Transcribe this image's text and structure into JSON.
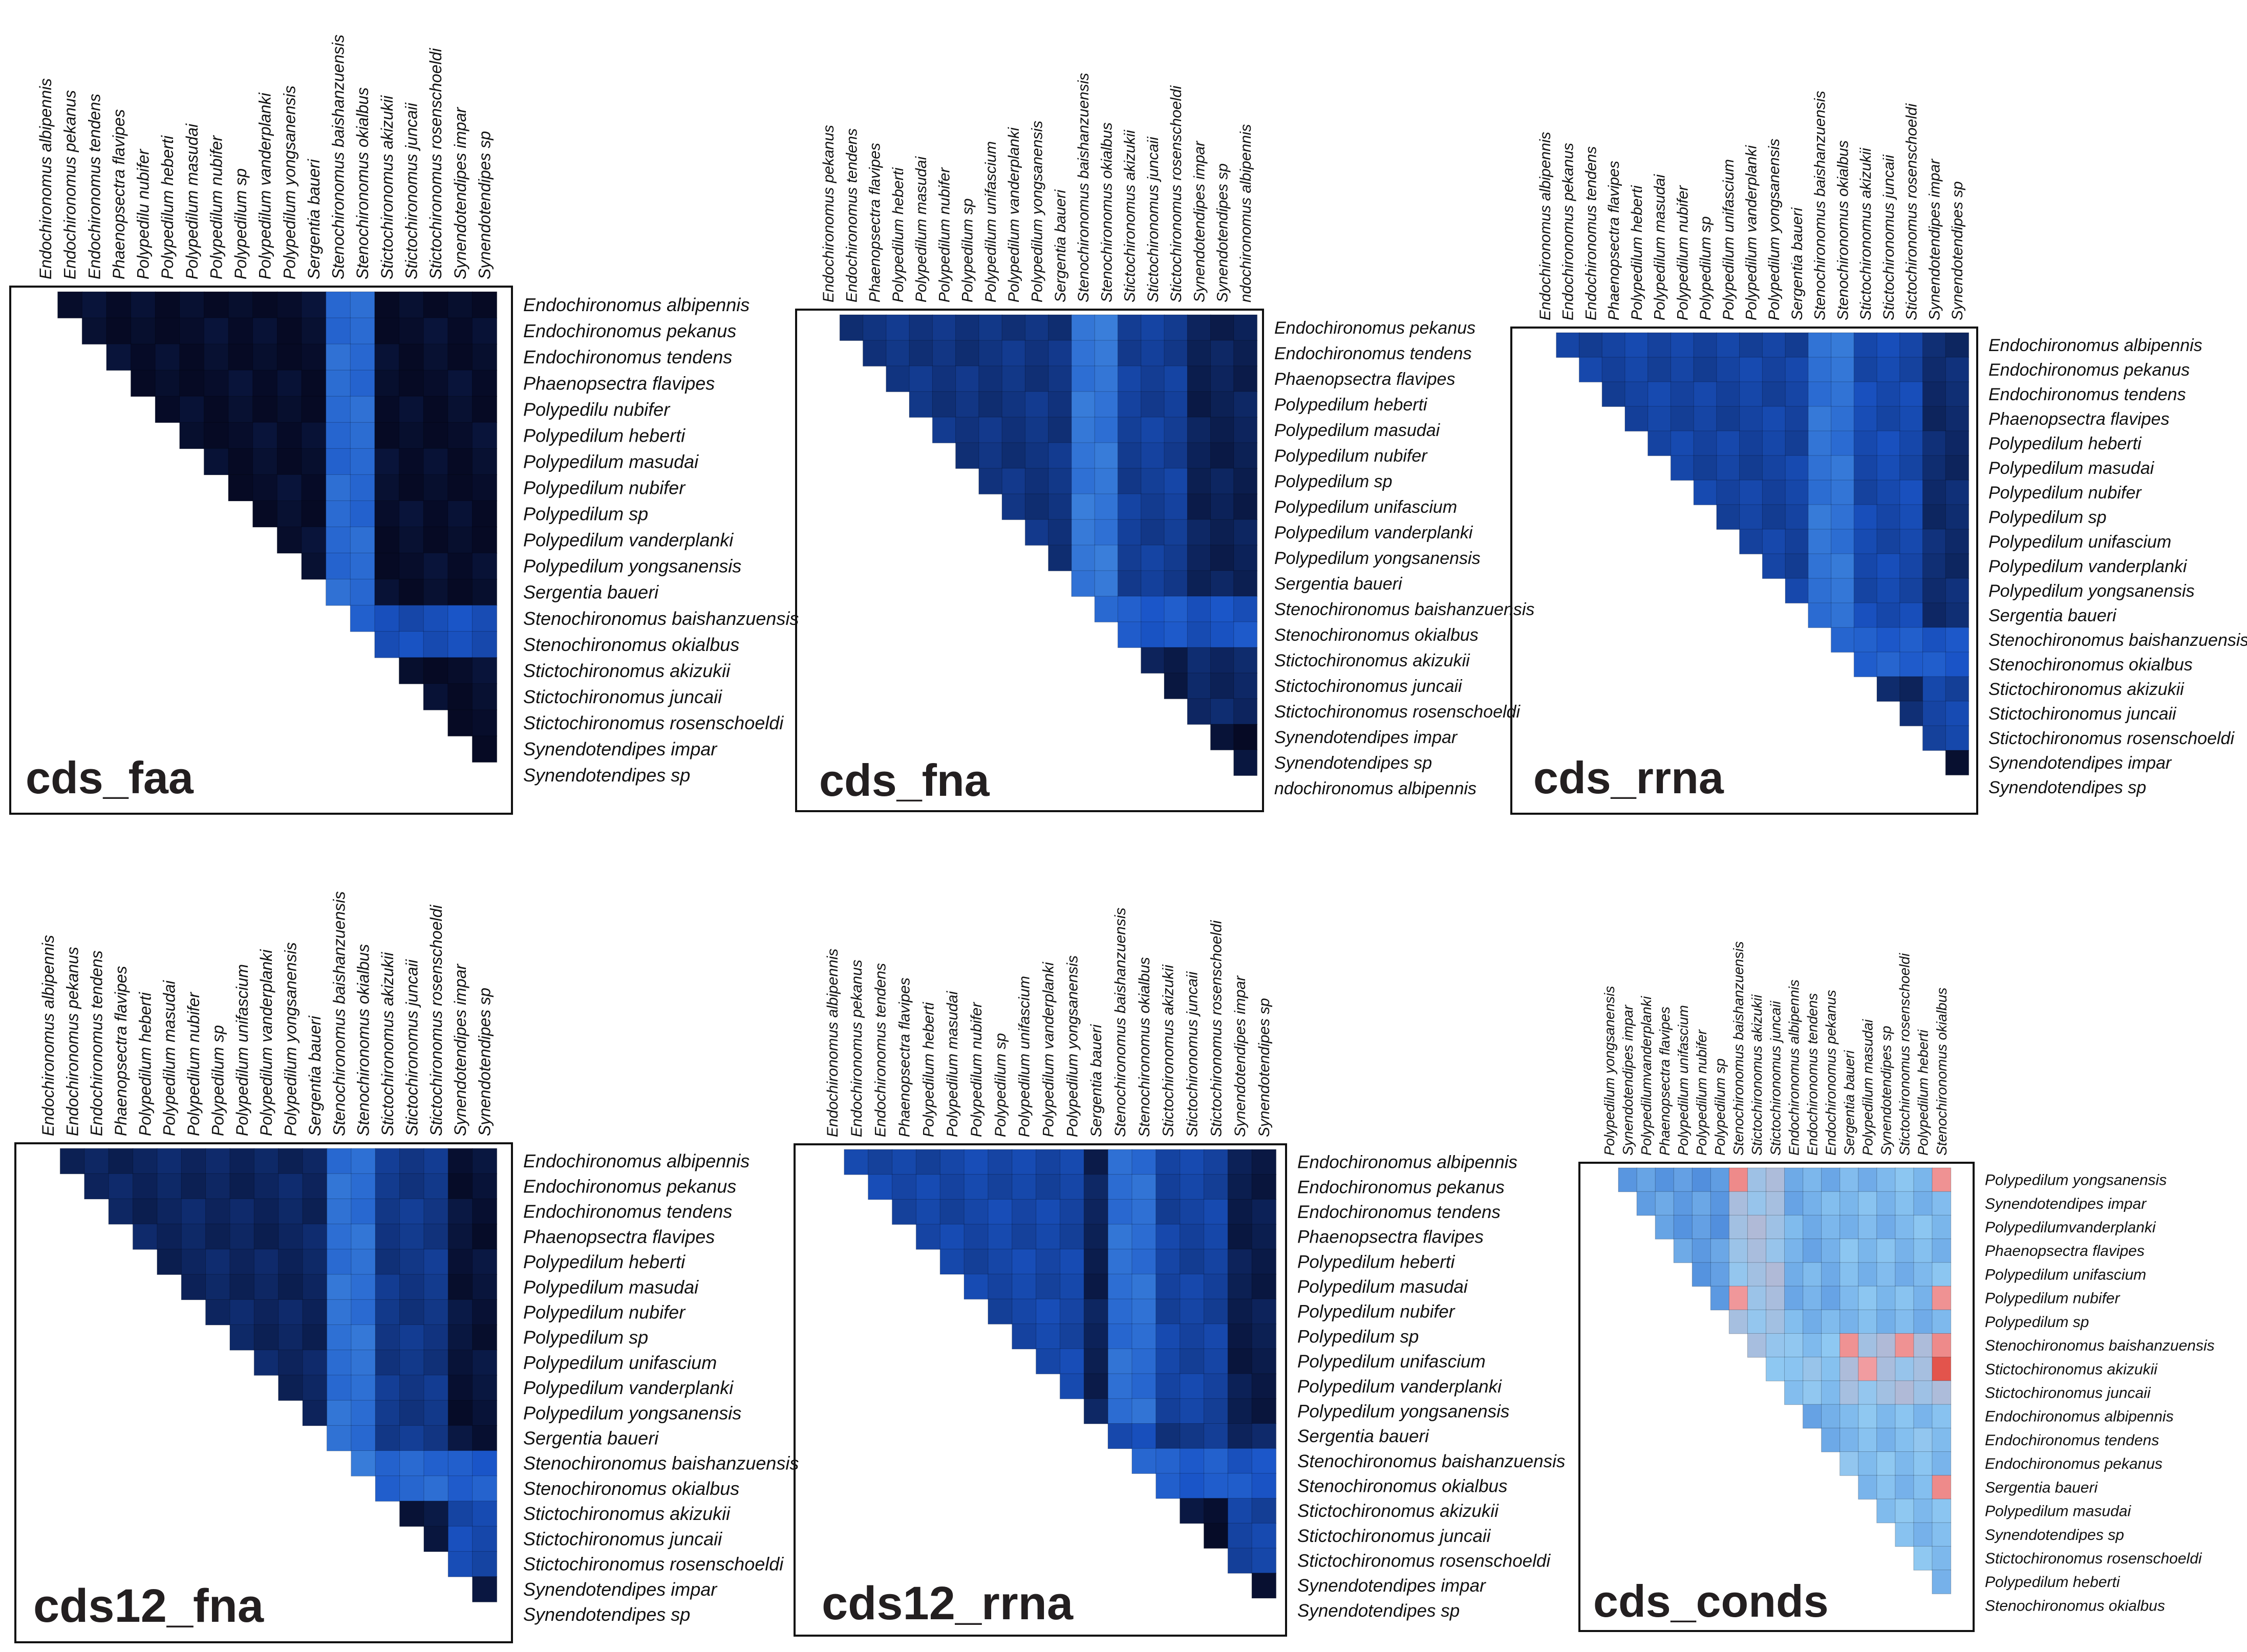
{
  "chart_data": [
    {
      "type": "heatmap",
      "title": "cds_faa",
      "columns": [
        "Endochironomus albipennis",
        "Endochironomus pekanus",
        "Endochironomus tendens",
        "Phaenopsectra flavipes",
        "Polypedilu nubifer",
        "Polypedilum heberti",
        "Polypedilum masudai",
        "Polypedilum nubifer",
        "Polypedilum sp",
        "Polypedilum vanderplanki",
        "Polypedilum yongsanensis",
        "Sergentia baueri",
        "Stenochironomus baishanzuensis",
        "Stenochironomus okialbus",
        "Stictochironomus akizukii",
        "Stictochironomus juncaii",
        "Stictochironomus rosenschoeldi",
        "Synendotendipes impar",
        "Synendotendipes sp"
      ],
      "rows": [
        "Endochironomus albipennis",
        "Endochironomus pekanus",
        "Endochironomus tendens",
        "Phaenopsectra flavipes",
        "Polypedilu nubifer",
        "Polypedilum heberti",
        "Polypedilum masudai",
        "Polypedilum nubifer",
        "Polypedilum sp",
        "Polypedilum vanderplanki",
        "Polypedilum yongsanensis",
        "Sergentia baueri",
        "Stenochironomus baishanzuensis",
        "Stenochironomus okialbus",
        "Stictochironomus akizukii",
        "Stictochironomus juncaii",
        "Stictochironomus rosenschoeldi",
        "Synendotendipes impar",
        "Synendotendipes sp"
      ],
      "layout": "upper-triangle",
      "color_scale": [
        "#060a24",
        "#1a55c8",
        "#5aa8ec"
      ],
      "levels_by_group": {
        "groups": [
          [
            0,
            11
          ],
          [
            12,
            13
          ],
          [
            14,
            16
          ],
          [
            17,
            18
          ]
        ],
        "matrix": [
          [
            0.02,
            0.62,
            0.02,
            0.02
          ],
          [
            null,
            0.6,
            0.45,
            0.45
          ],
          [
            null,
            null,
            0.02,
            0.02
          ],
          [
            null,
            null,
            null,
            0.02
          ]
        ]
      }
    },
    {
      "type": "heatmap",
      "title": "cds_fna",
      "columns": [
        "Endochironomus pekanus",
        "Endochironomus tendens",
        "Phaenopsectra flavipes",
        "Polypedilum heberti",
        "Polypedilum masudai",
        "Polypedilum nubifer",
        "Polypedilum sp",
        "Polypedilum unifascium",
        "Polypedilum vanderplanki",
        "Polypedilum yongsanensis",
        "Sergentia baueri",
        "Stenochironomus baishanzuensis",
        "Stenochironomus okialbus",
        "Stictochironomus akizukii",
        "Stictochironomus juncaii",
        "Stictochironomus rosenschoeldi",
        "Synendotendipes impar",
        "Synendotendipes sp",
        "ndochironomus albipennis"
      ],
      "rows": [
        "Endochironomus pekanus",
        "Endochironomus tendens",
        "Phaenopsectra flavipes",
        "Polypedilum heberti",
        "Polypedilum masudai",
        "Polypedilum nubifer",
        "Polypedilum sp",
        "Polypedilum unifascium",
        "Polypedilum vanderplanki",
        "Polypedilum yongsanensis",
        "Sergentia baueri",
        "Stenochironomus baishanzuensis",
        "Stenochironomus okialbus",
        "Stictochironomus akizukii",
        "Stictochironomus juncaii",
        "Stictochironomus rosenschoeldi",
        "Synendotendipes impar",
        "Synendotendipes sp",
        "ndochironomus albipennis"
      ],
      "layout": "upper-triangle",
      "color_scale": [
        "#060a24",
        "#1a55c8",
        "#5aa8ec"
      ],
      "levels_by_group": {
        "groups": [
          [
            0,
            10
          ],
          [
            11,
            12
          ],
          [
            13,
            15
          ],
          [
            16,
            18
          ]
        ],
        "matrix": [
          [
            0.28,
            0.7,
            0.35,
            0.15
          ],
          [
            null,
            0.62,
            0.52,
            0.48
          ],
          [
            null,
            null,
            0.12,
            0.2
          ],
          [
            null,
            null,
            null,
            0.05
          ]
        ]
      }
    },
    {
      "type": "heatmap",
      "title": "cds_rrna",
      "columns": [
        "Endochironomus albipennis",
        "Endochironomus pekanus",
        "Endochironomus tendens",
        "Phaenopsectra flavipes",
        "Polypedilum heberti",
        "Polypedilum masudai",
        "Polypedilum nubifer",
        "Polypedilum sp",
        "Polypedilum unifascium",
        "Polypedilum vanderplanki",
        "Polypedilum yongsanensis",
        "Sergentia baueri",
        "Stenochironomus baishanzuensis",
        "Stenochironomus okialbus",
        "Stictochironomus akizukii",
        "Stictochironomus juncaii",
        "Stictochironomus rosenschoeldi",
        "Synendotendipes impar",
        "Synendotendipes sp"
      ],
      "rows": [
        "Endochironomus albipennis",
        "Endochironomus pekanus",
        "Endochironomus tendens",
        "Phaenopsectra flavipes",
        "Polypedilum heberti",
        "Polypedilum masudai",
        "Polypedilum nubifer",
        "Polypedilum sp",
        "Polypedilum unifascium",
        "Polypedilum vanderplanki",
        "Polypedilum yongsanensis",
        "Sergentia baueri",
        "Stenochironomus baishanzuensis",
        "Stenochironomus okialbus",
        "Stictochironomus akizukii",
        "Stictochironomus juncaii",
        "Stictochironomus rosenschoeldi",
        "Synendotendipes impar",
        "Synendotendipes sp"
      ],
      "layout": "upper-triangle",
      "color_scale": [
        "#060a24",
        "#1a55c8",
        "#5aa8ec"
      ],
      "levels_by_group": {
        "groups": [
          [
            0,
            11
          ],
          [
            12,
            13
          ],
          [
            14,
            16
          ],
          [
            17,
            18
          ]
        ],
        "matrix": [
          [
            0.38,
            0.68,
            0.42,
            0.22
          ],
          [
            null,
            0.62,
            0.55,
            0.52
          ],
          [
            null,
            null,
            0.2,
            0.4
          ],
          [
            null,
            null,
            null,
            0.05
          ]
        ]
      }
    },
    {
      "type": "heatmap",
      "title": "cds12_fna",
      "columns": [
        "Endochironomus albipennis",
        "Endochironomus pekanus",
        "Endochironomus tendens",
        "Phaenopsectra flavipes",
        "Polypedilum heberti",
        "Polypedilum masudai",
        "Polypedilum nubifer",
        "Polypedilum sp",
        "Polypedilum unifascium",
        "Polypedilum vanderplanki",
        "Polypedilum yongsanensis",
        "Sergentia baueri",
        "Stenochironomus baishanzuensis",
        "Stenochironomus okialbus",
        "Stictochironomus akizukii",
        "Stictochironomus juncaii",
        "Stictochironomus rosenschoeldi",
        "Synendotendipes impar",
        "Synendotendipes sp"
      ],
      "rows": [
        "Endochironomus albipennis",
        "Endochironomus pekanus",
        "Endochironomus tendens",
        "Phaenopsectra flavipes",
        "Polypedilum heberti",
        "Polypedilum masudai",
        "Polypedilum nubifer",
        "Polypedilum sp",
        "Polypedilum unifascium",
        "Polypedilum vanderplanki",
        "Polypedilum yongsanensis",
        "Sergentia baueri",
        "Stenochironomus baishanzuensis",
        "Stenochironomus okialbus",
        "Stictochironomus akizukii",
        "Stictochironomus juncaii",
        "Stictochironomus rosenschoeldi",
        "Synendotendipes impar",
        "Synendotendipes sp"
      ],
      "layout": "upper-triangle",
      "color_scale": [
        "#060a24",
        "#1a55c8",
        "#5aa8ec"
      ],
      "levels_by_group": {
        "groups": [
          [
            0,
            11
          ],
          [
            12,
            13
          ],
          [
            14,
            16
          ],
          [
            17,
            18
          ]
        ],
        "matrix": [
          [
            0.18,
            0.66,
            0.3,
            0.06
          ],
          [
            null,
            0.7,
            0.6,
            0.55
          ],
          [
            null,
            null,
            0.08,
            0.42
          ],
          [
            null,
            null,
            null,
            0.04
          ]
        ]
      }
    },
    {
      "type": "heatmap",
      "title": "cds12_rrna",
      "columns": [
        "Endochironomus albipennis",
        "Endochironomus pekanus",
        "Endochironomus tendens",
        "Phaenopsectra flavipes",
        "Polypedilum heberti",
        "Polypedilum masudai",
        "Polypedilum nubifer",
        "Polypedilum sp",
        "Polypedilum unifascium",
        "Polypedilum vanderplanki",
        "Polypedilum yongsanensis",
        "Sergentia baueri",
        "Stenochironomus baishanzuensis",
        "Stenochironomus okialbus",
        "Stictochironomus akizukii",
        "Stictochironomus juncaii",
        "Stictochironomus rosenschoeldi",
        "Synendotendipes impar",
        "Synendotendipes sp"
      ],
      "rows": [
        "Endochironomus albipennis",
        "Endochironomus pekanus",
        "Endochironomus tendens",
        "Phaenopsectra flavipes",
        "Polypedilum heberti",
        "Polypedilum masudai",
        "Polypedilum nubifer",
        "Polypedilum sp",
        "Polypedilum unifascium",
        "Polypedilum vanderplanki",
        "Polypedilum yongsanensis",
        "Sergentia baueri",
        "Stenochironomus baishanzuensis",
        "Stenochironomus okialbus",
        "Stictochironomus akizukii",
        "Stictochironomus juncaii",
        "Stictochironomus rosenschoeldi",
        "Synendotendipes impar",
        "Synendotendipes sp"
      ],
      "layout": "upper-triangle",
      "color_scale": [
        "#060a24",
        "#1a55c8",
        "#5aa8ec"
      ],
      "levels_by_group": {
        "groups": [
          [
            0,
            10
          ],
          [
            11,
            11
          ],
          [
            12,
            13
          ],
          [
            14,
            16
          ],
          [
            17,
            18
          ]
        ],
        "matrix": [
          [
            0.4,
            0.15,
            0.65,
            0.38,
            0.12
          ],
          [
            null,
            0.1,
            0.45,
            0.3,
            0.18
          ],
          [
            null,
            null,
            0.62,
            0.55,
            0.5
          ],
          [
            null,
            null,
            null,
            0.06,
            0.38
          ],
          [
            null,
            null,
            null,
            null,
            0.04
          ]
        ]
      }
    },
    {
      "type": "heatmap",
      "title": "cds_conds",
      "columns": [
        "Polypedilum yongsanensis",
        "Synendotendipes impar",
        "Polypedilumvanderplanki",
        "Phaenopsectra flavipes",
        "Polypedilum unifascium",
        "Polypedilum nubifer",
        "Polypedilum sp",
        "Stenochironomus baishanzuensis",
        "Stictochironomus akizukii",
        "Stictochironomus juncaii",
        "Endochironomus albipennis",
        "Endochironomus tendens",
        "Endochironomus pekanus",
        "Sergentia baueri",
        "Polypedilum masudai",
        "Synendotendipes sp",
        "Stictochironomus rosenschoeldi",
        "Polypedilum heberti",
        "Stenochironomus okialbus"
      ],
      "rows": [
        "Polypedilum yongsanensis",
        "Synendotendipes impar",
        "Polypedilumvanderplanki",
        "Phaenopsectra flavipes",
        "Polypedilum unifascium",
        "Polypedilum nubifer",
        "Polypedilum sp",
        "Stenochironomus baishanzuensis",
        "Stictochironomus akizukii",
        "Stictochironomus juncaii",
        "Endochironomus albipennis",
        "Endochironomus tendens",
        "Endochironomus pekanus",
        "Sergentia baueri",
        "Polypedilum masudai",
        "Synendotendipes sp",
        "Stictochironomus rosenschoeldi",
        "Polypedilum heberti",
        "Stenochironomus okialbus"
      ],
      "layout": "upper-triangle",
      "color_scale": [
        "#2a6ad0",
        "#8ec8f2",
        "#f2a0a4",
        "#e0463c"
      ],
      "levels_by_group": {
        "groups": [
          [
            0,
            6
          ],
          [
            7,
            9
          ],
          [
            10,
            12
          ],
          [
            13,
            18
          ]
        ],
        "matrix": [
          [
            0.18,
            0.4,
            0.25,
            0.28
          ],
          [
            null,
            0.38,
            0.32,
            0.4
          ],
          [
            null,
            null,
            0.2,
            0.3
          ],
          [
            null,
            null,
            null,
            0.3
          ]
        ]
      },
      "highlight_cells": [
        [
          0,
          7,
          0.75
        ],
        [
          5,
          7,
          0.7
        ],
        [
          7,
          13,
          0.72
        ],
        [
          7,
          16,
          0.72
        ],
        [
          8,
          14,
          0.68
        ],
        [
          0,
          18,
          0.72
        ],
        [
          5,
          18,
          0.72
        ],
        [
          7,
          18,
          0.75
        ],
        [
          8,
          18,
          0.95
        ],
        [
          13,
          18,
          0.75
        ]
      ]
    }
  ]
}
